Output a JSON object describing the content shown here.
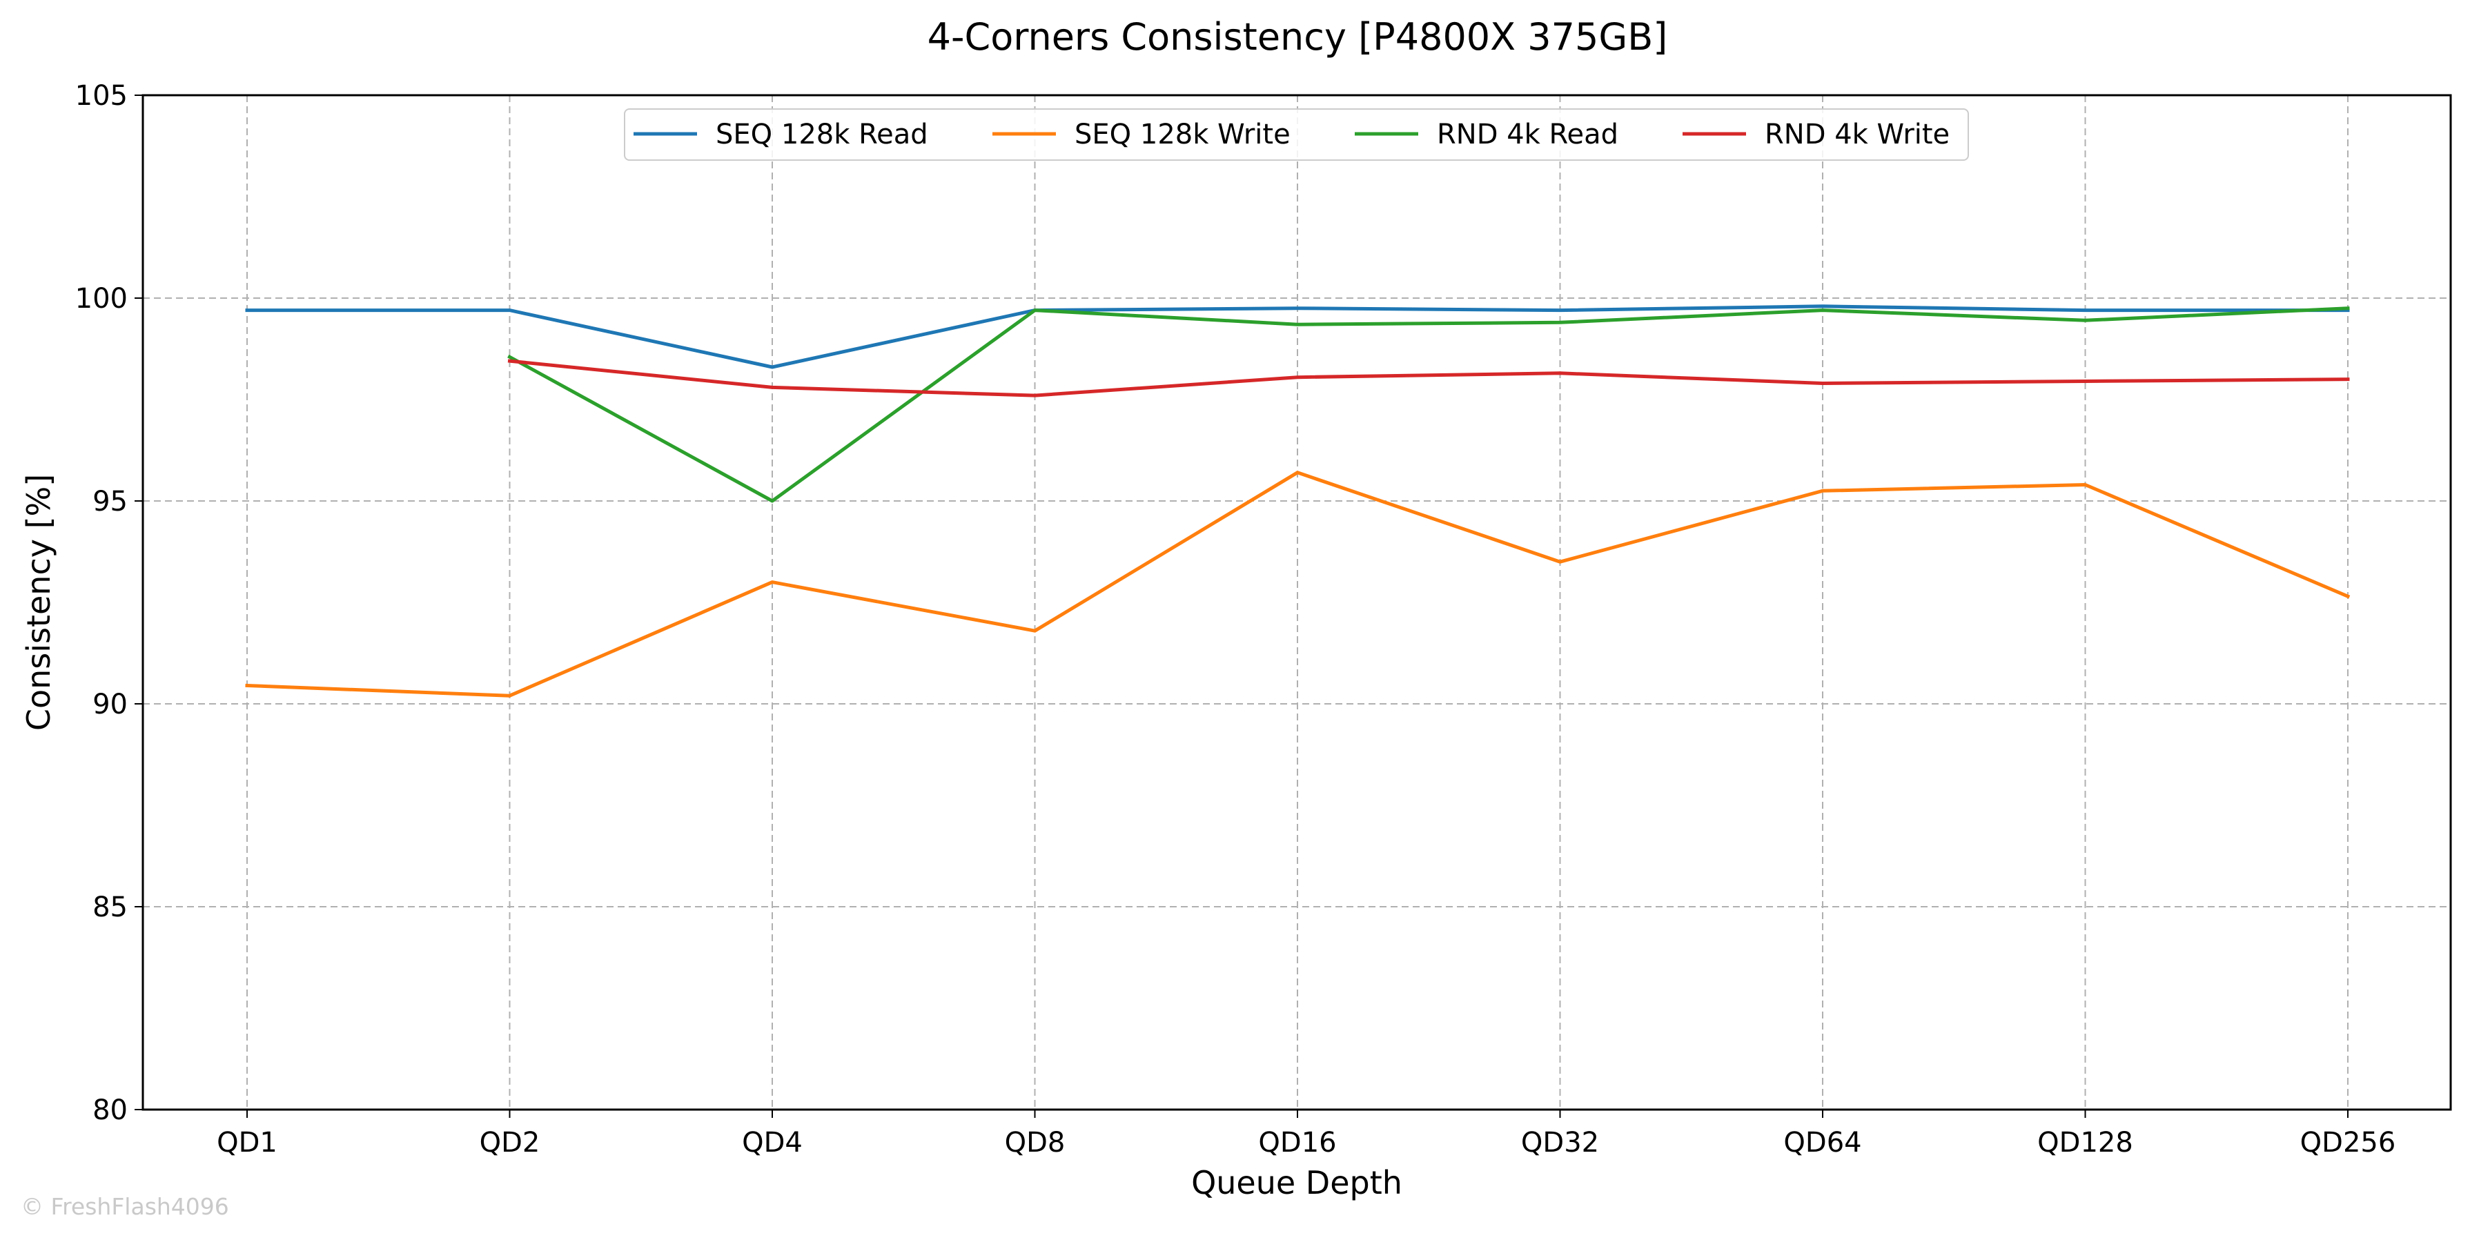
{
  "chart_data": {
    "type": "line",
    "title": "4-Corners Consistency [P4800X 375GB]",
    "xlabel": "Queue Depth",
    "ylabel": "Consistency [%]",
    "categories": [
      "QD1",
      "QD2",
      "QD4",
      "QD8",
      "QD16",
      "QD32",
      "QD64",
      "QD128",
      "QD256"
    ],
    "ylim": [
      80,
      105
    ],
    "yticks": [
      80,
      85,
      90,
      95,
      100,
      105
    ],
    "grid": true,
    "legend_position": "top-center",
    "series": [
      {
        "name": "SEQ 128k Read",
        "color": "#1f77b4",
        "values": [
          99.7,
          99.7,
          98.3,
          99.7,
          99.75,
          99.7,
          99.8,
          99.7,
          99.7
        ]
      },
      {
        "name": "SEQ 128k Write",
        "color": "#ff7f0e",
        "values": [
          90.45,
          90.2,
          93.0,
          91.8,
          95.7,
          93.5,
          95.25,
          95.4,
          92.65
        ]
      },
      {
        "name": "RND 4k Read",
        "color": "#2ca02c",
        "values": [
          null,
          98.55,
          95.0,
          99.7,
          99.35,
          99.4,
          99.7,
          99.45,
          99.75
        ]
      },
      {
        "name": "RND 4k Write",
        "color": "#d62728",
        "values": [
          null,
          98.45,
          97.8,
          97.6,
          98.05,
          98.15,
          97.9,
          97.95,
          98.0
        ]
      }
    ],
    "watermark": "© FreshFlash4096"
  }
}
